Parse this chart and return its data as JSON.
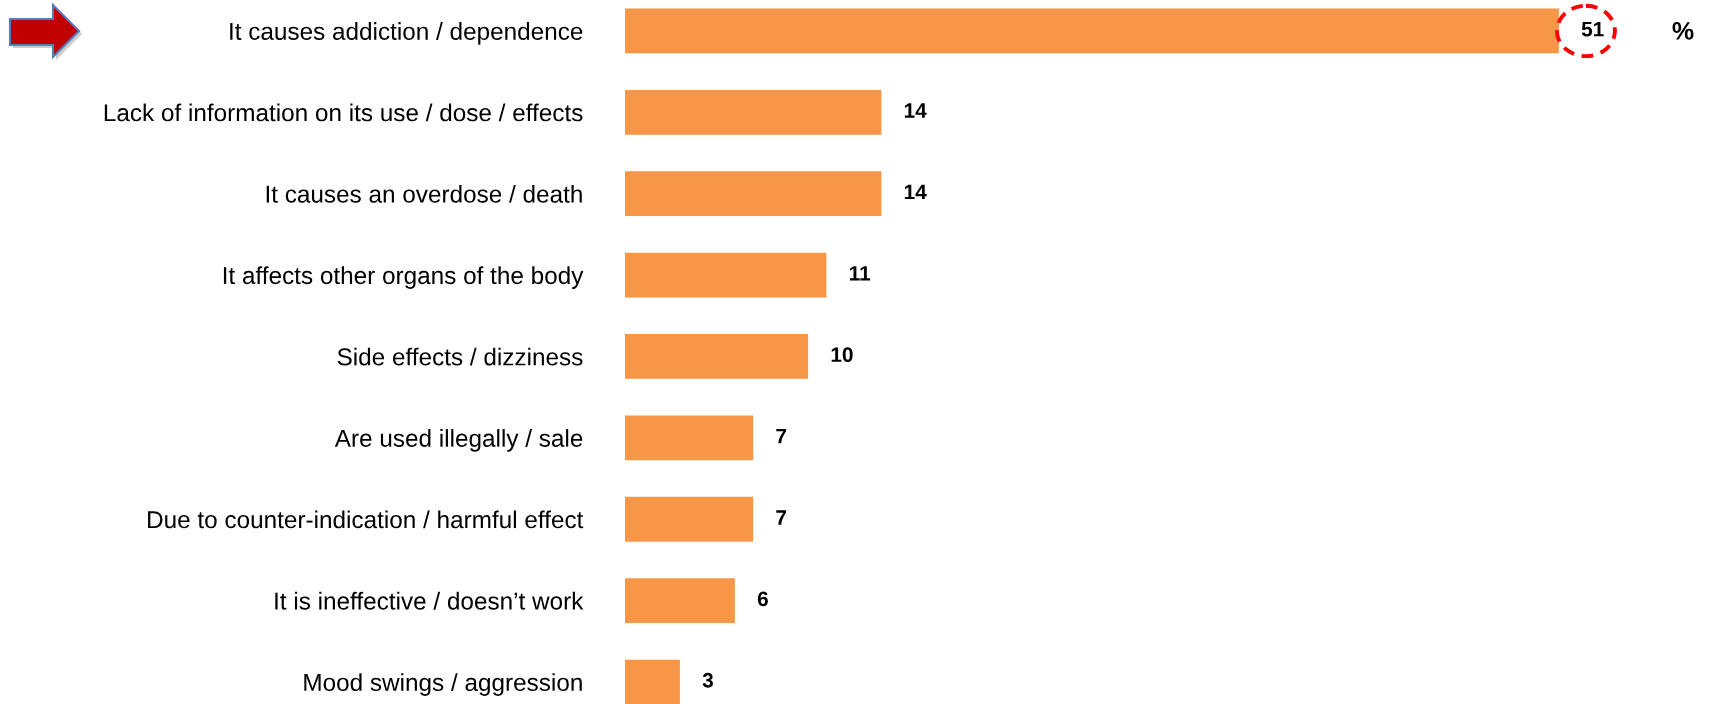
{
  "chart_data": {
    "type": "bar",
    "orientation": "horizontal",
    "categories": [
      "It causes addiction / dependence",
      "Lack of information on its use / dose / effects",
      "It causes an overdose / death",
      "It affects other organs of the body",
      "Side effects / dizziness",
      "Are used illegally / sale",
      "Due to counter-indication / harmful effect",
      "It is ineffective / doesn’t work",
      "Mood swings / aggression"
    ],
    "values": [
      51,
      14,
      14,
      11,
      10,
      7,
      7,
      6,
      3
    ],
    "color": "#f79646",
    "data_labels": true,
    "grid": false,
    "legend": false,
    "tick_labels": "y",
    "annotations": [
      "%"
    ]
  }
}
